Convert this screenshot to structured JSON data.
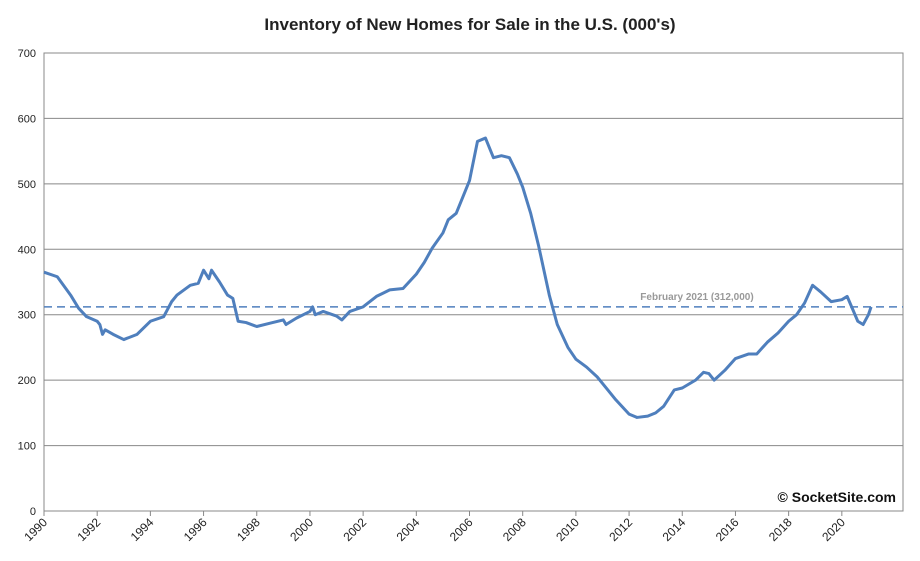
{
  "chart_data": {
    "type": "line",
    "title": "Inventory of New Homes for Sale in the U.S. (000's)",
    "series": [
      {
        "name": "Inventory",
        "color": "#4f7fbd",
        "x": [
          1990,
          1990.5,
          1991,
          1991.3,
          1991.6,
          1992,
          1992.1,
          1992.2,
          1992.3,
          1992.6,
          1993,
          1993.5,
          1994,
          1994.5,
          1994.8,
          1995,
          1995.5,
          1995.8,
          1996,
          1996.2,
          1996.3,
          1996.6,
          1996.9,
          1997.1,
          1997.3,
          1997.6,
          1998,
          1998.5,
          1999,
          1999.1,
          1999.5,
          2000,
          2000.1,
          2000.2,
          2000.5,
          2001,
          2001.2,
          2001.5,
          2002,
          2002.5,
          2003,
          2003.5,
          2004,
          2004.3,
          2004.6,
          2005,
          2005.2,
          2005.5,
          2005.8,
          2006,
          2006.3,
          2006.6,
          2006.9,
          2007.2,
          2007.5,
          2007.8,
          2008,
          2008.3,
          2008.6,
          2009,
          2009.3,
          2009.7,
          2010,
          2010.4,
          2010.8,
          2011.2,
          2011.5,
          2012,
          2012.3,
          2012.7,
          2013,
          2013.3,
          2013.7,
          2014,
          2014.5,
          2014.8,
          2015,
          2015.2,
          2015.6,
          2016,
          2016.5,
          2016.8,
          2017.2,
          2017.6,
          2018,
          2018.3,
          2018.6,
          2018.9,
          2019.2,
          2019.6,
          2020,
          2020.2,
          2020.6,
          2020.8,
          2021,
          2021.1
        ],
        "values": [
          365,
          358,
          330,
          310,
          297,
          290,
          285,
          270,
          277,
          270,
          262,
          270,
          290,
          297,
          320,
          330,
          345,
          348,
          368,
          355,
          368,
          350,
          330,
          325,
          290,
          288,
          282,
          287,
          292,
          285,
          295,
          305,
          312,
          300,
          305,
          298,
          292,
          305,
          312,
          328,
          338,
          340,
          362,
          380,
          402,
          425,
          445,
          455,
          485,
          505,
          565,
          570,
          540,
          543,
          540,
          515,
          495,
          455,
          405,
          330,
          285,
          250,
          232,
          220,
          205,
          185,
          170,
          148,
          143,
          145,
          150,
          160,
          185,
          188,
          200,
          212,
          210,
          200,
          215,
          233,
          240,
          240,
          258,
          272,
          290,
          300,
          318,
          345,
          335,
          320,
          323,
          328,
          290,
          285,
          300,
          312
        ]
      }
    ],
    "reference_line": {
      "value": 312,
      "label": "February 2021 (312,000)"
    },
    "watermark": "© SocketSite.com",
    "xlim": [
      1990,
      2022.3
    ],
    "xticks": [
      1990,
      1992,
      1994,
      1996,
      1998,
      2000,
      2002,
      2004,
      2006,
      2008,
      2010,
      2012,
      2014,
      2016,
      2018,
      2020
    ],
    "ylim": [
      0,
      700
    ],
    "yticks": [
      0,
      100,
      200,
      300,
      400,
      500,
      600,
      700
    ],
    "grid": true
  }
}
